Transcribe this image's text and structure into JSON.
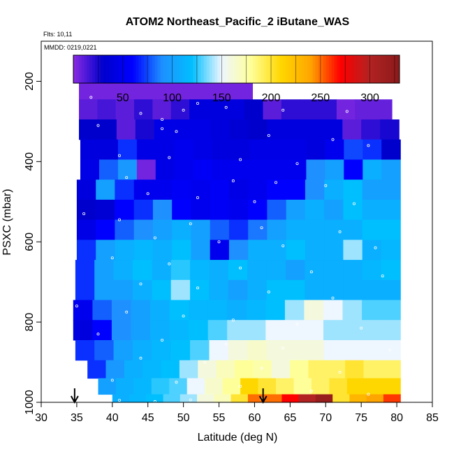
{
  "chart_data": {
    "type": "heatmap",
    "title": "ATOM2 Northeast_Pacific_2 iButane_WAS",
    "flights_label": "Flts: 10,11",
    "dates_label": "MMDD: 0219,0221",
    "xlabel": "Latitude (deg N)",
    "ylabel": "PSXC (mbar)",
    "xlim": [
      30,
      85
    ],
    "ylim": [
      1000,
      100
    ],
    "x_ticks": [
      30,
      35,
      40,
      45,
      50,
      55,
      60,
      65,
      70,
      75,
      80,
      85
    ],
    "y_ticks": [
      200,
      400,
      600,
      800,
      1000
    ],
    "colorbar": {
      "min": 0,
      "max": 330,
      "ticks": [
        50,
        100,
        150,
        200,
        250,
        300
      ],
      "colors": [
        "#8a2be2",
        "#0000cd",
        "#0000ff",
        "#1e90ff",
        "#00bfff",
        "#eef6ff",
        "#ffff99",
        "#ffd700",
        "#ffa500",
        "#ff0000",
        "#b22222",
        "#8b1a1a"
      ]
    },
    "arrows_lat": [
      34.7,
      61.2
    ],
    "rows": [
      {
        "p": 220,
        "x0": 35.3,
        "x1": 59.7,
        "v": [
          5,
          5,
          5,
          5,
          5,
          5,
          5,
          5,
          5,
          5
        ]
      },
      {
        "p": 270,
        "x0": 35.3,
        "x1": 79.3,
        "v": [
          10,
          15,
          10,
          20,
          10,
          20,
          40,
          40,
          40,
          30,
          10,
          20,
          20,
          20,
          5,
          8,
          8
        ]
      },
      {
        "p": 320,
        "x0": 35.3,
        "x1": 80.3,
        "v": [
          30,
          30,
          10,
          25,
          45,
          45,
          45,
          40,
          35,
          30,
          40,
          40,
          40,
          40,
          10,
          20,
          25
        ]
      },
      {
        "p": 370,
        "x0": 35.5,
        "x1": 80.5,
        "v": [
          40,
          40,
          70,
          45,
          45,
          50,
          45,
          40,
          40,
          45,
          45,
          45,
          40,
          50,
          75,
          70,
          30
        ]
      },
      {
        "p": 420,
        "x0": 35.5,
        "x1": 80.5,
        "v": [
          45,
          80,
          95,
          5,
          45,
          50,
          55,
          50,
          50,
          50,
          50,
          50,
          90,
          100,
          60,
          110,
          100
        ]
      },
      {
        "p": 470,
        "x0": 35.0,
        "x1": 80.5,
        "v": [
          40,
          100,
          70,
          50,
          50,
          55,
          50,
          55,
          45,
          50,
          60,
          60,
          90,
          110,
          120,
          100,
          100
        ]
      },
      {
        "p": 520,
        "x0": 35.0,
        "x1": 80.5,
        "v": [
          30,
          35,
          60,
          70,
          90,
          60,
          50,
          55,
          50,
          60,
          80,
          100,
          110,
          100,
          120,
          110,
          110
        ]
      },
      {
        "p": 570,
        "x0": 35.0,
        "x1": 80.5,
        "v": [
          45,
          60,
          80,
          90,
          100,
          110,
          100,
          80,
          70,
          85,
          100,
          110,
          110,
          110,
          110,
          120,
          120
        ]
      },
      {
        "p": 620,
        "x0": 35.0,
        "x1": 80.5,
        "v": [
          70,
          100,
          110,
          115,
          110,
          120,
          100,
          50,
          90,
          110,
          110,
          120,
          110,
          110,
          140,
          110,
          115
        ]
      },
      {
        "p": 670,
        "x0": 34.8,
        "x1": 80.5,
        "v": [
          70,
          100,
          110,
          120,
          110,
          125,
          115,
          110,
          120,
          110,
          110,
          100,
          110,
          110,
          110,
          115,
          120
        ]
      },
      {
        "p": 720,
        "x0": 34.8,
        "x1": 80.5,
        "v": [
          70,
          100,
          100,
          110,
          120,
          140,
          120,
          110,
          100,
          110,
          120,
          120,
          110,
          110,
          110,
          110,
          110
        ]
      },
      {
        "p": 770,
        "x0": 34.5,
        "x1": 80.5,
        "v": [
          50,
          80,
          90,
          100,
          110,
          120,
          115,
          115,
          110,
          115,
          120,
          140,
          160,
          150,
          140,
          130,
          130
        ]
      },
      {
        "p": 820,
        "x0": 34.5,
        "x1": 80.5,
        "v": [
          40,
          60,
          90,
          100,
          110,
          115,
          120,
          130,
          140,
          140,
          150,
          150,
          150,
          140,
          140,
          140,
          140
        ]
      },
      {
        "p": 870,
        "x0": 34.8,
        "x1": 80.5,
        "v": [
          70,
          80,
          100,
          110,
          115,
          120,
          130,
          150,
          160,
          165,
          160,
          160,
          160,
          150,
          150,
          150,
          150
        ]
      },
      {
        "p": 920,
        "x0": 36.5,
        "x1": 80.5,
        "v": [
          70,
          95,
          110,
          115,
          120,
          140,
          160,
          170,
          180,
          175,
          160,
          180,
          190,
          190,
          200,
          190,
          190
        ]
      },
      {
        "p": 960,
        "x0": 38.0,
        "x1": 80.5,
        "v": [
          100,
          110,
          115,
          125,
          130,
          150,
          165,
          180,
          210,
          200,
          190,
          180,
          190,
          200,
          210,
          210,
          210
        ]
      },
      {
        "p": 1000,
        "x0": 40.0,
        "x1": 80.5,
        "v": [
          110,
          115,
          120,
          130,
          140,
          160,
          170,
          200,
          250,
          250,
          270,
          300,
          320,
          200,
          230,
          240,
          260
        ]
      }
    ],
    "sample_points": [
      [
        37,
        240
      ],
      [
        52,
        255
      ],
      [
        56,
        265
      ],
      [
        44,
        280
      ],
      [
        47,
        295
      ],
      [
        50,
        272
      ],
      [
        64,
        272
      ],
      [
        73,
        275
      ],
      [
        38,
        310
      ],
      [
        47,
        318
      ],
      [
        49,
        325
      ],
      [
        62,
        335
      ],
      [
        71,
        345
      ],
      [
        76,
        360
      ],
      [
        41,
        385
      ],
      [
        48,
        390
      ],
      [
        58,
        395
      ],
      [
        66,
        405
      ],
      [
        42,
        440
      ],
      [
        57,
        448
      ],
      [
        63,
        452
      ],
      [
        70,
        460
      ],
      [
        45,
        480
      ],
      [
        52,
        490
      ],
      [
        60,
        500
      ],
      [
        74,
        505
      ],
      [
        36,
        530
      ],
      [
        41,
        545
      ],
      [
        51,
        555
      ],
      [
        61,
        565
      ],
      [
        72,
        575
      ],
      [
        46,
        590
      ],
      [
        55,
        600
      ],
      [
        64,
        610
      ],
      [
        77,
        615
      ],
      [
        40,
        640
      ],
      [
        48,
        655
      ],
      [
        58,
        665
      ],
      [
        68,
        675
      ],
      [
        78,
        685
      ],
      [
        44,
        705
      ],
      [
        52,
        715
      ],
      [
        62,
        725
      ],
      [
        71,
        740
      ],
      [
        35,
        760
      ],
      [
        42,
        775
      ],
      [
        50,
        785
      ],
      [
        57,
        795
      ],
      [
        66,
        805
      ],
      [
        75,
        815
      ],
      [
        38,
        830
      ],
      [
        47,
        845
      ],
      [
        56,
        855
      ],
      [
        64,
        865
      ],
      [
        79,
        870
      ],
      [
        44,
        890
      ],
      [
        53,
        900
      ],
      [
        61,
        915
      ],
      [
        72,
        925
      ],
      [
        40,
        945
      ],
      [
        49,
        950
      ],
      [
        58,
        960
      ],
      [
        68,
        972
      ],
      [
        76,
        980
      ],
      [
        41,
        995
      ],
      [
        46,
        998
      ],
      [
        51,
        994
      ],
      [
        61,
        992
      ]
    ]
  }
}
